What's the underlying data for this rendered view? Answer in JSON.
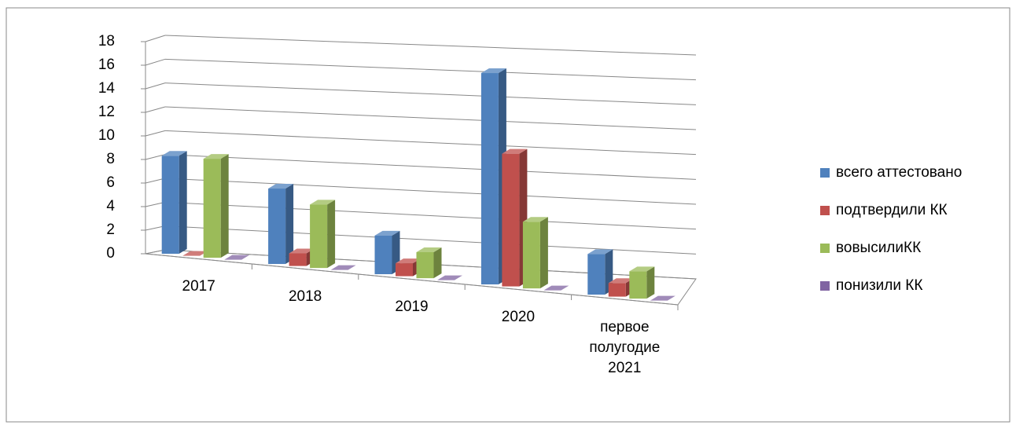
{
  "chart_data": {
    "type": "bar3d",
    "categories": [
      "2017",
      "2018",
      "2019",
      "2020",
      "первое полугодие 2021"
    ],
    "series": [
      {
        "name": "всего аттестовано",
        "color": "#4f81bd",
        "values": [
          8,
          6,
          3,
          16,
          3
        ]
      },
      {
        "name": "подтвердили КК",
        "color": "#c0504d",
        "values": [
          0,
          1,
          1,
          10,
          1
        ]
      },
      {
        "name": "вовысилиКК",
        "color": "#9bbb59",
        "values": [
          8,
          5,
          2,
          5,
          2
        ]
      },
      {
        "name": "понизили КК",
        "color": "#8064a2",
        "values": [
          0,
          0,
          0,
          0,
          0
        ]
      }
    ],
    "ylim": [
      0,
      18
    ],
    "yticks": [
      0,
      2,
      4,
      6,
      8,
      10,
      12,
      14,
      16,
      18
    ],
    "grid": true,
    "legend": "right"
  }
}
